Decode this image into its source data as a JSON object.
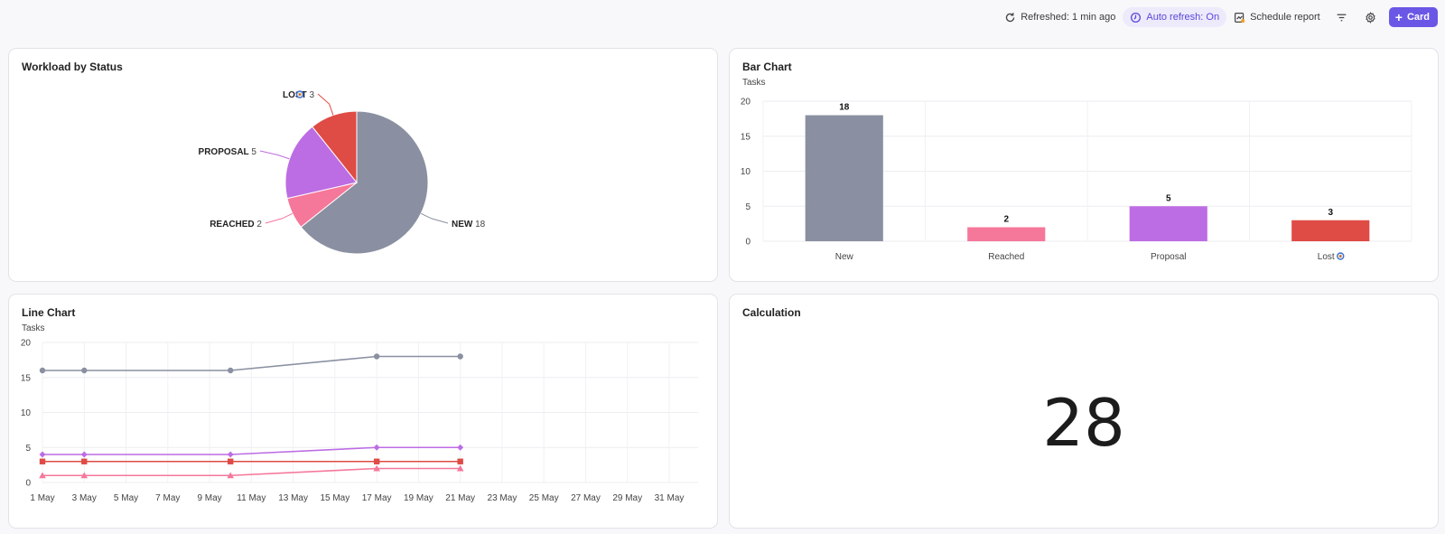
{
  "toolbar": {
    "refreshed": "Refreshed: 1 min ago",
    "auto_refresh": "Auto refresh: On",
    "schedule": "Schedule report",
    "add_card": "Card"
  },
  "colors": {
    "new": "#8a90a1",
    "reached": "#f5779a",
    "proposal": "#bd6de3",
    "lost": "#df4b45",
    "accent": "#6a57e6"
  },
  "cards": {
    "pie": {
      "title": "Workload by Status"
    },
    "bar": {
      "title": "Bar Chart",
      "unit": "Tasks"
    },
    "line": {
      "title": "Line Chart",
      "unit": "Tasks"
    },
    "calc": {
      "title": "Calculation",
      "value": "28"
    }
  },
  "chart_data": [
    {
      "type": "pie",
      "title": "Workload by Status",
      "slices": [
        {
          "label": "NEW",
          "value": 18,
          "color": "#8a90a1"
        },
        {
          "label": "REACHED",
          "value": 2,
          "color": "#f5779a"
        },
        {
          "label": "PROPOSAL",
          "value": 5,
          "color": "#bd6de3"
        },
        {
          "label": "LOST",
          "value": 3,
          "color": "#df4b45",
          "emoji": "🧿"
        }
      ]
    },
    {
      "type": "bar",
      "title": "Bar Chart",
      "ylabel": "Tasks",
      "categories": [
        "New",
        "Reached",
        "Proposal",
        "Lost"
      ],
      "category_emoji": [
        "",
        "",
        "",
        "🧿"
      ],
      "values": [
        18,
        2,
        5,
        3
      ],
      "colors": [
        "#8a90a1",
        "#f5779a",
        "#bd6de3",
        "#df4b45"
      ],
      "ylim": [
        0,
        20
      ],
      "yticks": [
        0,
        5,
        10,
        15,
        20
      ],
      "grid": true
    },
    {
      "type": "line",
      "title": "Line Chart",
      "ylabel": "Tasks",
      "x": [
        1,
        3,
        10,
        17,
        21
      ],
      "xticks": [
        "1 May",
        "3 May",
        "5 May",
        "7 May",
        "9 May",
        "11 May",
        "13 May",
        "15 May",
        "17 May",
        "19 May",
        "21 May",
        "23 May",
        "25 May",
        "27 May",
        "29 May",
        "31 May"
      ],
      "xlim": [
        1,
        31
      ],
      "ylim": [
        0,
        20
      ],
      "yticks": [
        0,
        5,
        10,
        15,
        20
      ],
      "grid": true,
      "series": [
        {
          "values": [
            16,
            16,
            16,
            18,
            18
          ],
          "color": "#8a90a1",
          "marker": "circle"
        },
        {
          "values": [
            4,
            4,
            4,
            5,
            5
          ],
          "color": "#bd6de3",
          "marker": "diamond"
        },
        {
          "values": [
            3,
            3,
            3,
            3,
            3
          ],
          "color": "#df4b45",
          "marker": "square"
        },
        {
          "values": [
            1,
            1,
            1,
            2,
            2
          ],
          "color": "#f5779a",
          "marker": "triangle"
        }
      ]
    }
  ]
}
